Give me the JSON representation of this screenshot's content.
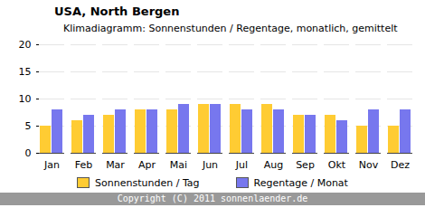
{
  "chart_data": {
    "type": "bar",
    "title": "USA, North Bergen",
    "subtitle": "Klimadiagramm: Sonnenstunden / Regentage, monatlich, gemittelt",
    "caption": "Copyright (C) 2011 sonnenlaender.de",
    "categories": [
      "Jan",
      "Feb",
      "Mar",
      "Apr",
      "Mai",
      "Jun",
      "Jul",
      "Aug",
      "Sep",
      "Okt",
      "Nov",
      "Dez"
    ],
    "series": [
      {
        "name": "Sonnenstunden / Tag",
        "color": "#ffcc33",
        "values": [
          5,
          6,
          7,
          8,
          8,
          9,
          9,
          9,
          7,
          7,
          5,
          5
        ]
      },
      {
        "name": "Regentage / Monat",
        "color": "#7777ee",
        "values": [
          8,
          7,
          8,
          8,
          9,
          9,
          8,
          8,
          7,
          6,
          8,
          8
        ]
      }
    ],
    "ylim": [
      0,
      20
    ],
    "yticks": [
      0,
      5,
      10,
      15,
      20
    ],
    "grid": true,
    "legend": "bottom"
  }
}
